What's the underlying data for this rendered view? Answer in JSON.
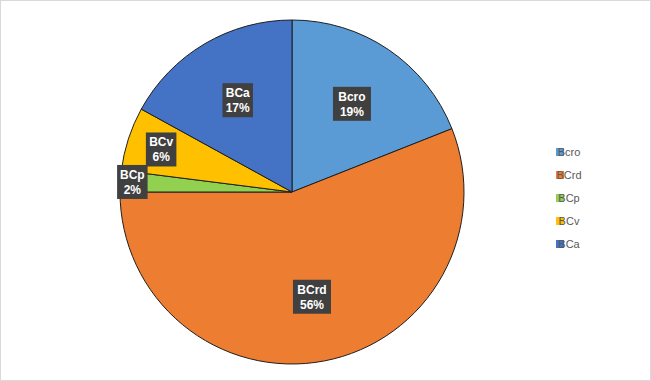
{
  "chart_data": {
    "type": "pie",
    "categories": [
      "Bcro",
      "BCrd",
      "BCp",
      "BCv",
      "BCa"
    ],
    "values": [
      19,
      56,
      2,
      6,
      17
    ],
    "value_labels": [
      "19%",
      "56%",
      "2%",
      "6%",
      "17%"
    ],
    "colors": [
      "#5b9bd5",
      "#ed7d31",
      "#92d050",
      "#ffc000",
      "#4472c4"
    ],
    "data_labels": true,
    "legend": "right"
  }
}
